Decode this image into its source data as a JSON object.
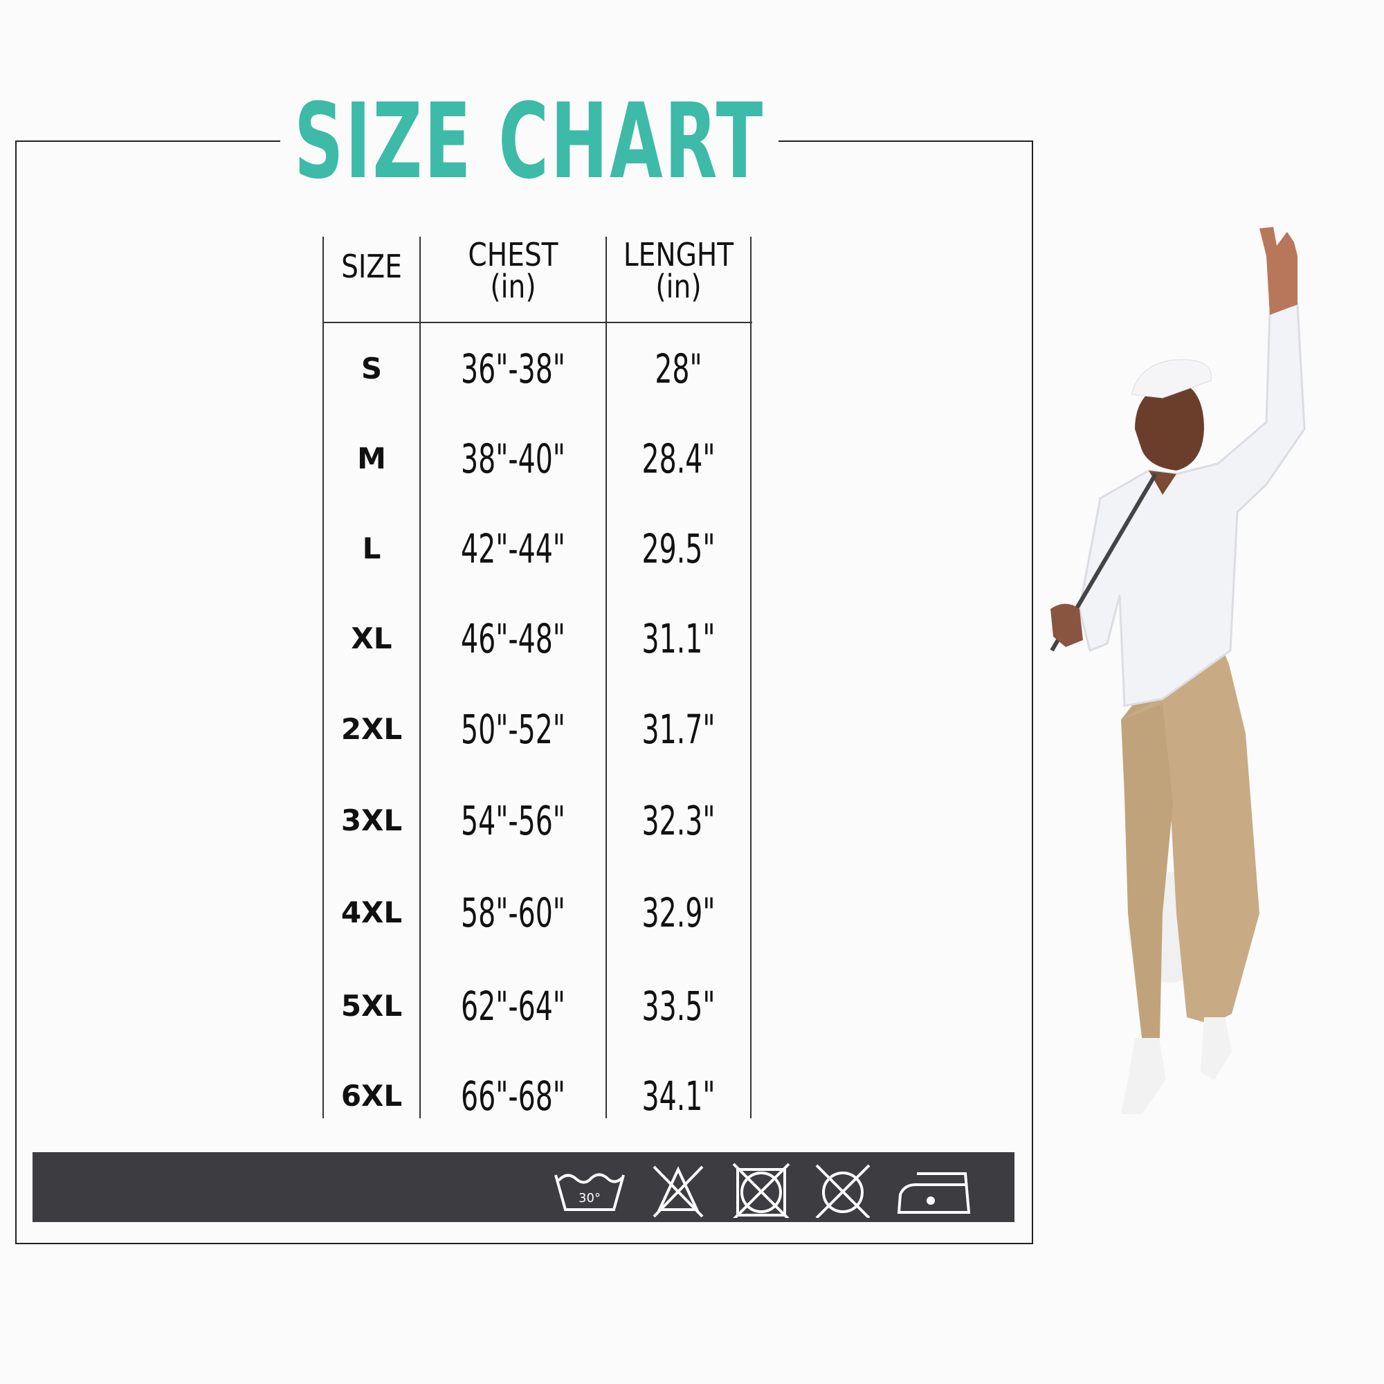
{
  "title": "SIZE CHART",
  "table": {
    "headers": [
      {
        "label": "SIZE",
        "unit": ""
      },
      {
        "label": "CHEST",
        "unit": "(in)"
      },
      {
        "label": "LENGHT",
        "unit": "(in)"
      }
    ],
    "rows": [
      {
        "size": "S",
        "chest": "36\"-38\"",
        "length": "28\""
      },
      {
        "size": "M",
        "chest": "38\"-40\"",
        "length": "28.4\""
      },
      {
        "size": "L",
        "chest": "42\"-44\"",
        "length": "29.5\""
      },
      {
        "size": "XL",
        "chest": "46\"-48\"",
        "length": "31.1\""
      },
      {
        "size": "2XL",
        "chest": "50\"-52\"",
        "length": "31.7\""
      },
      {
        "size": "3XL",
        "chest": "54\"-56\"",
        "length": "32.3\""
      },
      {
        "size": "4XL",
        "chest": "58\"-60\"",
        "length": "32.9\""
      },
      {
        "size": "5XL",
        "chest": "62\"-64\"",
        "length": "33.5\""
      },
      {
        "size": "6XL",
        "chest": "66\"-68\"",
        "length": "34.1\""
      }
    ]
  },
  "care": {
    "wash_temp": "30°",
    "icons": [
      "wash-30-icon",
      "no-bleach-icon",
      "no-tumble-dry-icon",
      "no-dry-clean-icon",
      "iron-low-icon"
    ]
  },
  "colors": {
    "title": "#3dbaa8",
    "care_bar": "#3d3c40",
    "shirt": "#f2f3f7",
    "pants": "#c8ab84"
  }
}
